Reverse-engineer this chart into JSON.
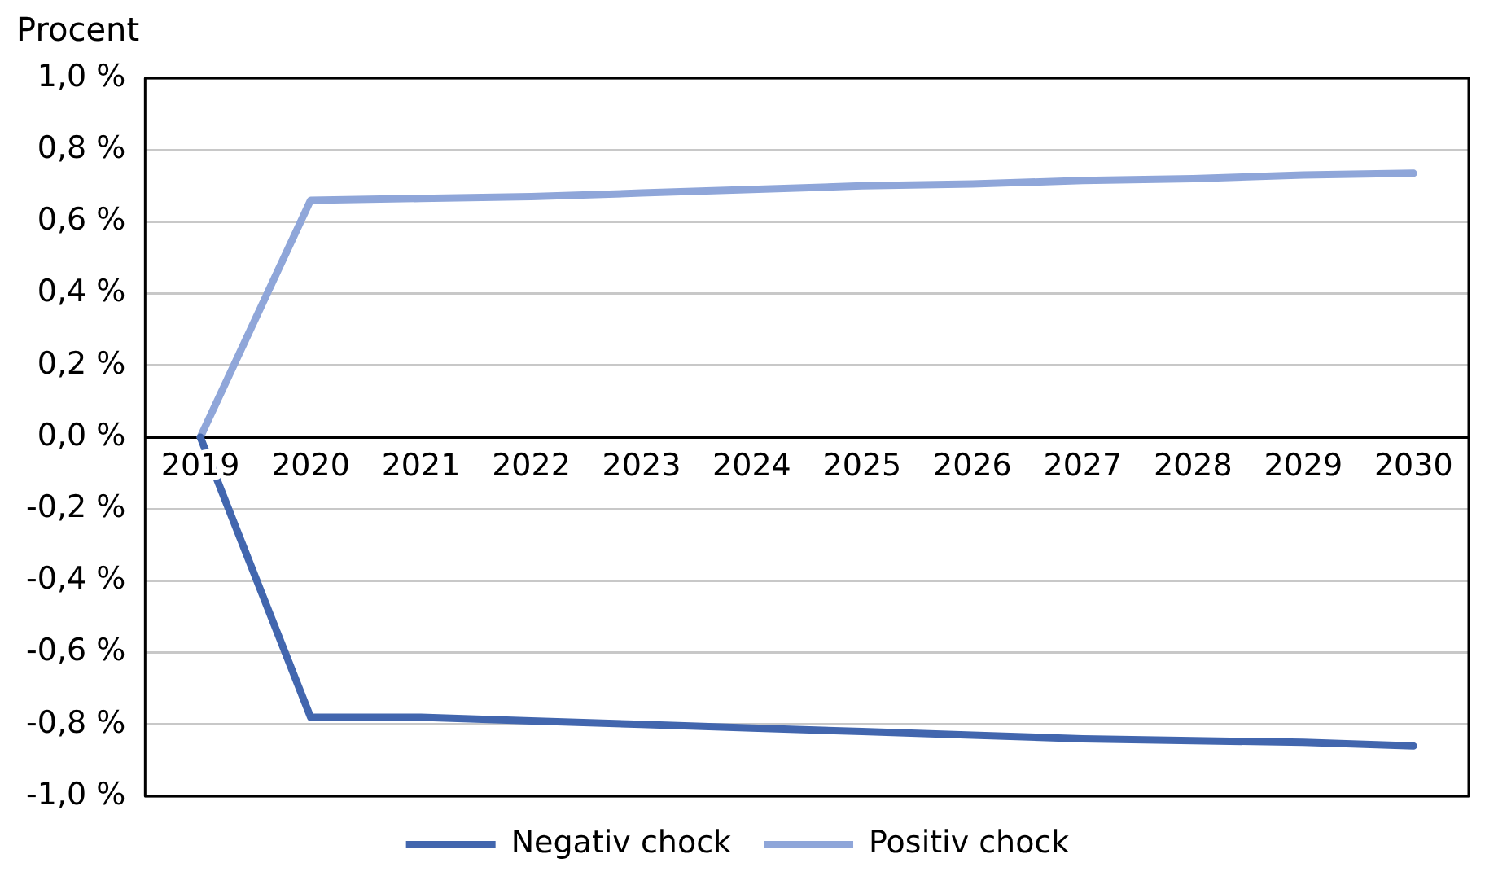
{
  "chart_data": {
    "type": "line",
    "ylabel": "Procent",
    "categories": [
      "2019",
      "2020",
      "2021",
      "2022",
      "2023",
      "2024",
      "2025",
      "2026",
      "2027",
      "2028",
      "2029",
      "2030"
    ],
    "series": [
      {
        "name": "Negativ chock",
        "color": "#4266ae",
        "values": [
          0,
          -0.78,
          -0.78,
          -0.79,
          -0.8,
          -0.81,
          -0.82,
          -0.83,
          -0.84,
          -0.845,
          -0.85,
          -0.86
        ]
      },
      {
        "name": "Positiv chock",
        "color": "#8fa6d9",
        "values": [
          0,
          0.66,
          0.665,
          0.67,
          0.68,
          0.69,
          0.7,
          0.705,
          0.715,
          0.72,
          0.73,
          0.735
        ]
      }
    ],
    "ylim": [
      -1,
      1
    ],
    "yticks": [
      {
        "value": -1,
        "label": "-1,0 %"
      },
      {
        "value": -0.8,
        "label": "-0,8 %"
      },
      {
        "value": -0.6,
        "label": "-0,6 %"
      },
      {
        "value": -0.4,
        "label": "-0,4 %"
      },
      {
        "value": -0.2,
        "label": "-0,2 %"
      },
      {
        "value": 0,
        "label": "0,0 %"
      },
      {
        "value": 0.2,
        "label": "0,2 %"
      },
      {
        "value": 0.4,
        "label": "0,4 %"
      },
      {
        "value": 0.6,
        "label": "0,6 %"
      },
      {
        "value": 0.8,
        "label": "0,8 %"
      },
      {
        "value": 1,
        "label": "1,0 %"
      }
    ],
    "grid": "y",
    "legend": "bottom",
    "marker": "none",
    "line_style": "solid"
  }
}
